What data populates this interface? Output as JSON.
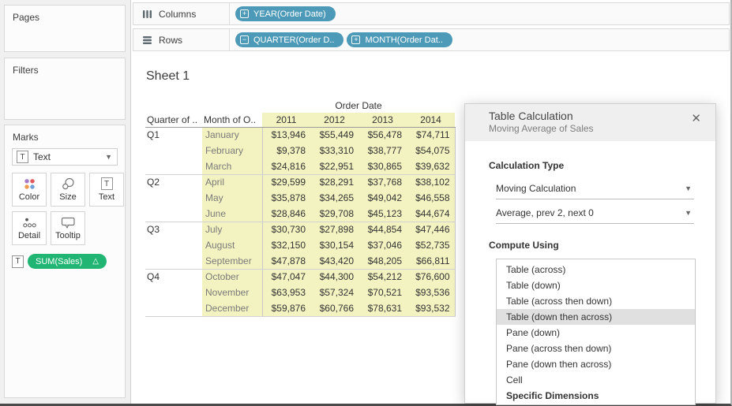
{
  "shelves": {
    "columns": {
      "label": "Columns",
      "pills": [
        {
          "sign": "+",
          "label": "YEAR(Order Date)"
        }
      ]
    },
    "rows": {
      "label": "Rows",
      "pills": [
        {
          "sign": "−",
          "label": "QUARTER(Order D.."
        },
        {
          "sign": "+",
          "label": "MONTH(Order Dat.."
        }
      ]
    }
  },
  "sidebar": {
    "pages_label": "Pages",
    "filters_label": "Filters",
    "marks": {
      "label": "Marks",
      "mark_type": "Text",
      "mark_type_icon": "T",
      "buttons": [
        {
          "label": "Color"
        },
        {
          "label": "Size"
        },
        {
          "label": "Text"
        },
        {
          "label": "Detail"
        },
        {
          "label": "Tooltip"
        }
      ],
      "field_pill": {
        "icon": "T",
        "label": "SUM(Sales)",
        "delta": "△"
      }
    }
  },
  "sheet_title": "Sheet 1",
  "chart_data": {
    "type": "table",
    "title": "Sheet 1",
    "column_group_label": "Order Date",
    "row_header_labels": [
      "Quarter of ..",
      "Month of O.."
    ],
    "columns": [
      "2011",
      "2012",
      "2013",
      "2014"
    ],
    "row_groups": [
      {
        "quarter": "Q1",
        "rows": [
          {
            "month": "January",
            "values": [
              "$13,946",
              "$55,449",
              "$56,478",
              "$74,711"
            ]
          },
          {
            "month": "February",
            "values": [
              "$9,378",
              "$33,310",
              "$38,777",
              "$54,075"
            ]
          },
          {
            "month": "March",
            "values": [
              "$24,816",
              "$22,951",
              "$30,865",
              "$39,632"
            ]
          }
        ]
      },
      {
        "quarter": "Q2",
        "rows": [
          {
            "month": "April",
            "values": [
              "$29,599",
              "$28,291",
              "$37,768",
              "$38,102"
            ]
          },
          {
            "month": "May",
            "values": [
              "$35,878",
              "$34,265",
              "$49,042",
              "$46,558"
            ]
          },
          {
            "month": "June",
            "values": [
              "$28,846",
              "$29,708",
              "$45,123",
              "$44,674"
            ]
          }
        ]
      },
      {
        "quarter": "Q3",
        "rows": [
          {
            "month": "July",
            "values": [
              "$30,730",
              "$27,898",
              "$44,854",
              "$47,446"
            ]
          },
          {
            "month": "August",
            "values": [
              "$32,150",
              "$30,154",
              "$37,046",
              "$52,735"
            ]
          },
          {
            "month": "September",
            "values": [
              "$47,878",
              "$43,420",
              "$48,205",
              "$66,811"
            ]
          }
        ]
      },
      {
        "quarter": "Q4",
        "rows": [
          {
            "month": "October",
            "values": [
              "$47,047",
              "$44,300",
              "$54,212",
              "$76,600"
            ]
          },
          {
            "month": "November",
            "values": [
              "$63,953",
              "$57,324",
              "$70,521",
              "$93,536"
            ]
          },
          {
            "month": "December",
            "values": [
              "$59,876",
              "$60,766",
              "$78,631",
              "$93,532"
            ]
          }
        ]
      }
    ]
  },
  "dialog": {
    "title": "Table Calculation",
    "subtitle": "Moving Average of Sales",
    "close_icon": "✕",
    "calculation_type_label": "Calculation Type",
    "dropdown_primary": "Moving Calculation",
    "dropdown_secondary": "Average, prev 2, next 0",
    "compute_using_label": "Compute Using",
    "options": [
      "Table (across)",
      "Table (down)",
      "Table (across then down)",
      "Table (down then across)",
      "Pane (down)",
      "Pane (across then down)",
      "Pane (down then across)",
      "Cell",
      "Specific Dimensions"
    ],
    "selected_index": 3,
    "bold_index": 8
  },
  "colors": {
    "pill_blue": "#4d9ab8",
    "pill_green": "#21b573",
    "highlight_yellow": "#f3f3c1",
    "selected_gray": "#e0e0e0"
  }
}
